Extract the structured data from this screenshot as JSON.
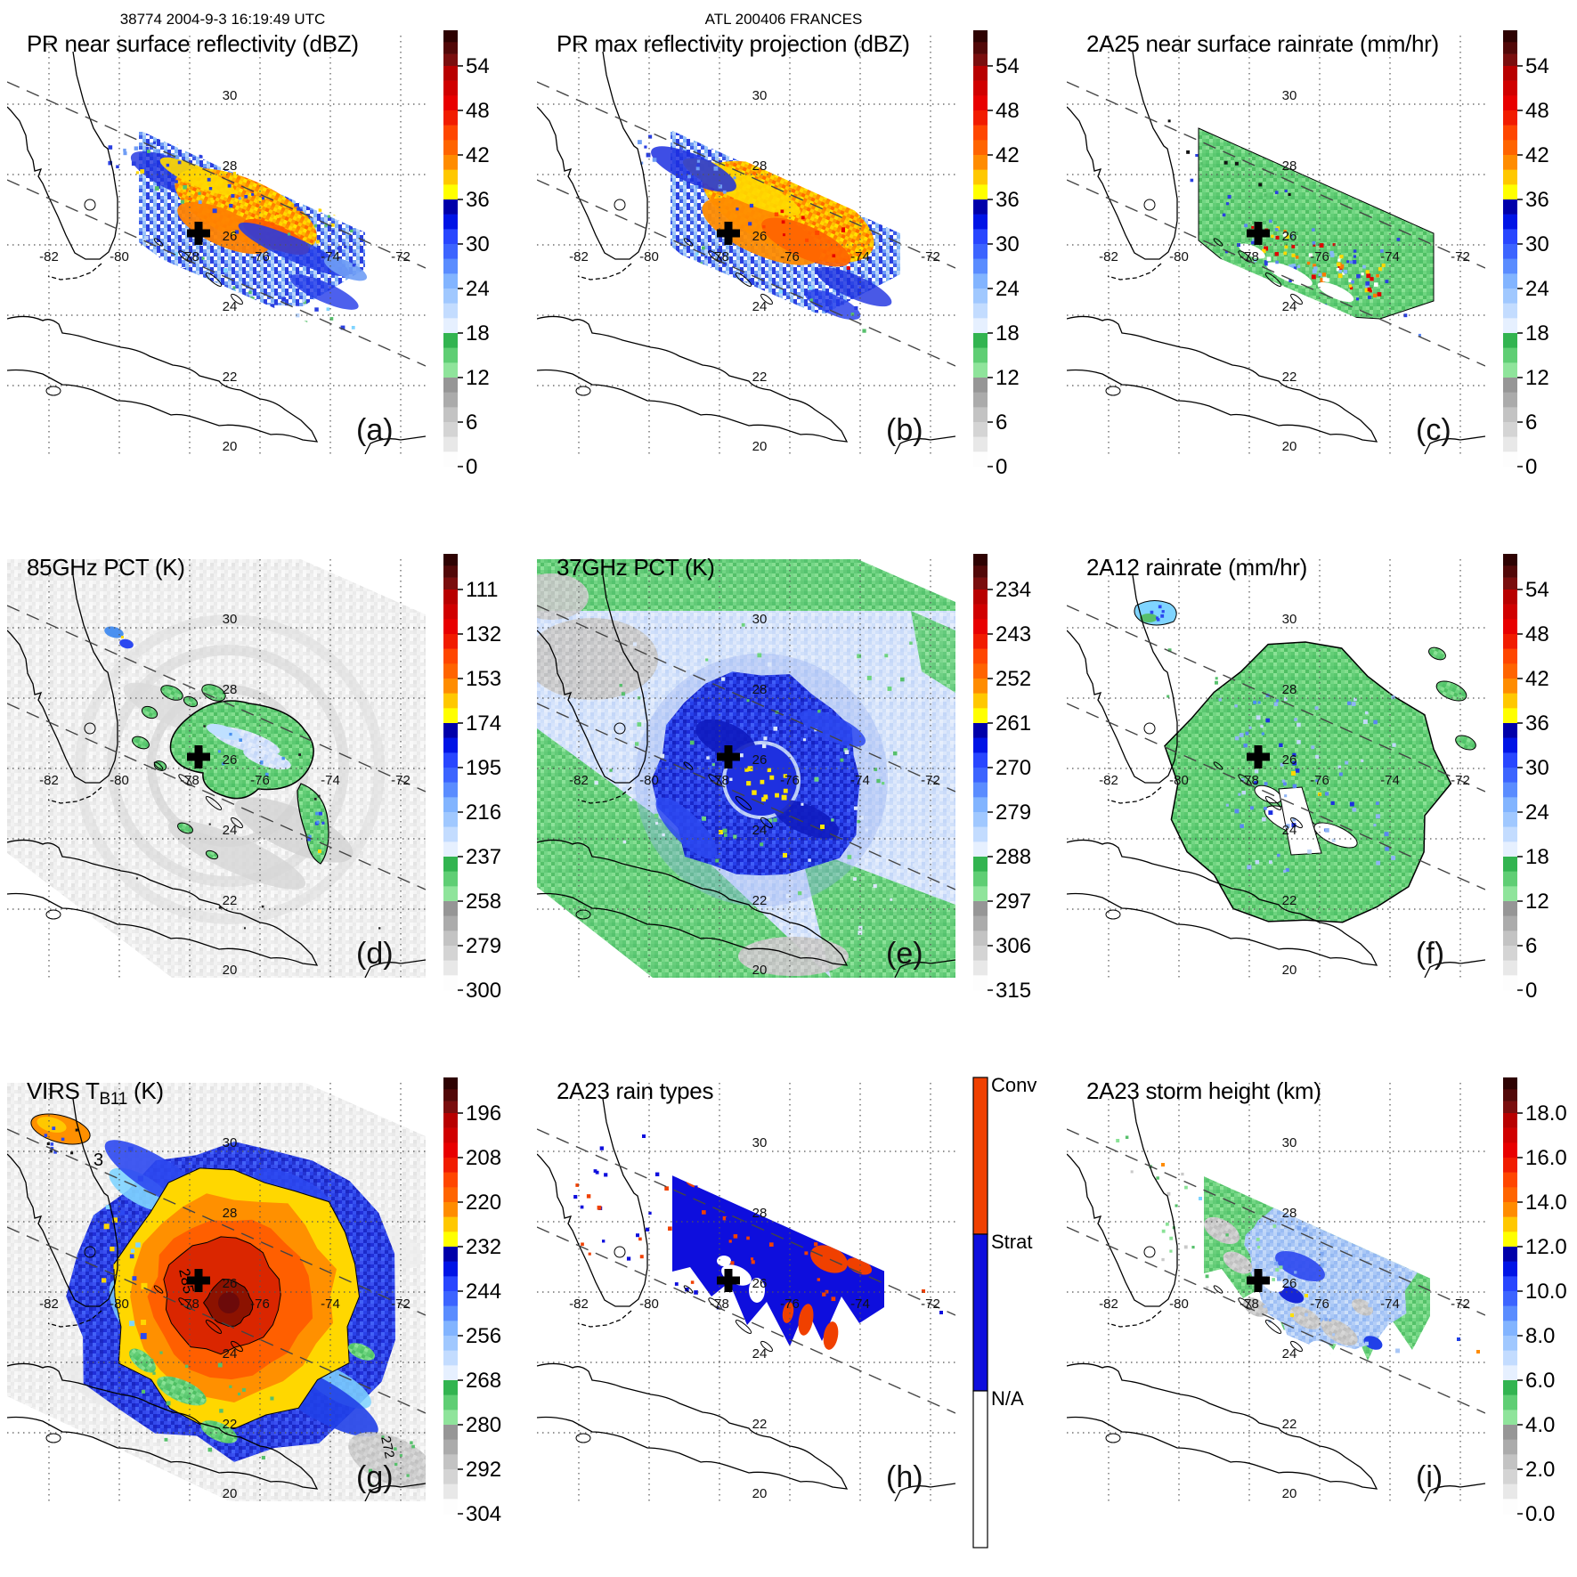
{
  "header": {
    "left": "38774 2004-9-3 16:19:49 UTC",
    "center": "ATL 200406 FRANCES"
  },
  "geo": {
    "lon_labels": [
      "-82",
      "-80",
      "-78",
      "-76",
      "-74",
      "-72"
    ],
    "lat_labels": [
      "30",
      "28",
      "26",
      "24",
      "22",
      "20"
    ]
  },
  "icons": {
    "storm-center-marker": "plus-cross"
  },
  "palette": {
    "cap": [
      "#2e0202",
      "#520808",
      "#7a0e0e"
    ],
    "rainbow": [
      [
        "#b80000",
        "#d00000",
        "#e80000"
      ],
      [
        "#f11c00",
        "#ff4600",
        "#ff6400"
      ],
      [
        "#ff8c00",
        "#ffc800",
        "#ffff00"
      ],
      [
        "#0000aa",
        "#0014e6",
        "#2846ff"
      ],
      [
        "#3c64ff",
        "#5a8cff",
        "#82b4ff"
      ],
      [
        "#a0c8ff",
        "#c3dcff",
        "#e6f0ff"
      ],
      [
        "#32b450",
        "#5fce74",
        "#8fe49b"
      ],
      [
        "#969696",
        "#ababab",
        "#c3c3c3"
      ],
      [
        "#d4d4d4",
        "#e8e8e8",
        "#fdfdfd"
      ]
    ],
    "rain_types": {
      "convective": "#f04000",
      "stratiform": "#0e0edd",
      "na": "#ffffff"
    },
    "land_outline": "#000000",
    "grid_line": "#555555",
    "swath_edge": "#444444"
  },
  "panels": [
    {
      "id": "a",
      "letter": "(a)",
      "title": "PR near surface reflectivity (dBZ)",
      "scene": "a",
      "colorbar": "rainbow",
      "colorbar_ticks": [
        "54",
        "48",
        "42",
        "36",
        "30",
        "24",
        "18",
        "12",
        "6",
        "0"
      ]
    },
    {
      "id": "b",
      "letter": "(b)",
      "title": "PR max reflectivity projection (dBZ)",
      "scene": "b",
      "colorbar": "rainbow",
      "colorbar_ticks": [
        "54",
        "48",
        "42",
        "36",
        "30",
        "24",
        "18",
        "12",
        "6",
        "0"
      ]
    },
    {
      "id": "c",
      "letter": "(c)",
      "title": "2A25 near surface rainrate (mm/hr)",
      "scene": "c",
      "colorbar": "rainbow",
      "colorbar_ticks": [
        "54",
        "48",
        "42",
        "36",
        "30",
        "24",
        "18",
        "12",
        "6",
        "0"
      ]
    },
    {
      "id": "d",
      "letter": "(d)",
      "title": "85GHz PCT (K)",
      "scene": "d",
      "colorbar": "rainbow",
      "colorbar_ticks": [
        "111",
        "132",
        "153",
        "174",
        "195",
        "216",
        "237",
        "258",
        "279",
        "300"
      ]
    },
    {
      "id": "e",
      "letter": "(e)",
      "title": "37GHz PCT (K)",
      "scene": "e",
      "colorbar": "rainbow",
      "colorbar_ticks": [
        "234",
        "243",
        "252",
        "261",
        "270",
        "279",
        "288",
        "297",
        "306",
        "315"
      ]
    },
    {
      "id": "f",
      "letter": "(f)",
      "title": "2A12 rainrate (mm/hr)",
      "scene": "f",
      "colorbar": "rainbow",
      "colorbar_ticks": [
        "54",
        "48",
        "42",
        "36",
        "30",
        "24",
        "18",
        "12",
        "6",
        "0"
      ]
    },
    {
      "id": "g",
      "letter": "(g)",
      "title_parts": {
        "pre": "VIRS T",
        "sub": "B11",
        "post": " (K)"
      },
      "scene": "g",
      "colorbar": "rainbow",
      "colorbar_ticks": [
        "196",
        "208",
        "220",
        "232",
        "244",
        "256",
        "268",
        "280",
        "292",
        "304"
      ],
      "contour_labels": [
        "3",
        "285",
        "272"
      ]
    },
    {
      "id": "h",
      "letter": "(h)",
      "title": "2A23 rain types",
      "scene": "h",
      "colorbar": "raintypes",
      "colorbar_labels": [
        "Conv",
        "Strat",
        "N/A"
      ]
    },
    {
      "id": "i",
      "letter": "(i)",
      "title": "2A23 storm height (km)",
      "scene": "i",
      "colorbar": "rainbow",
      "colorbar_ticks": [
        "18.0",
        "16.0",
        "14.0",
        "12.0",
        "10.0",
        "8.0",
        "6.0",
        "4.0",
        "2.0",
        "0.0"
      ]
    }
  ],
  "chart_data": {
    "meta": {
      "overpass_id": "38774",
      "datetime_utc": "2004-9-3 16:19:49 UTC",
      "storm": "ATL 200406 FRANCES",
      "grid_lon_deg": [
        -82,
        -80,
        -78,
        -76,
        -74,
        -72
      ],
      "grid_lat_deg": [
        30,
        28,
        26,
        24,
        22,
        20
      ],
      "storm_center_deg": [
        -77.7,
        25.9
      ]
    },
    "panels": [
      {
        "label": "(a)",
        "title": "PR near surface reflectivity (dBZ)",
        "type": "heatmap",
        "units": "dBZ",
        "scale_ticks": [
          54,
          48,
          42,
          36,
          30,
          24,
          18,
          12,
          6,
          0
        ],
        "description": "TRMM PR narrow diagonal swath; spiral rainbands 18-50 dBZ northeast of storm center, convective cores 42-50 dBZ"
      },
      {
        "label": "(b)",
        "title": "PR max reflectivity projection (dBZ)",
        "type": "heatmap",
        "units": "dBZ",
        "scale_ticks": [
          54,
          48,
          42,
          36,
          30,
          24,
          18,
          12,
          6,
          0
        ],
        "description": "column-maximum reflectivity; broad contiguous 36-48 dBZ core with blue 24-36 dBZ fringes"
      },
      {
        "label": "(c)",
        "title": "2A25 near surface rainrate (mm/hr)",
        "type": "heatmap",
        "units": "mm/hr",
        "scale_ticks": [
          54,
          48,
          42,
          36,
          30,
          24,
          18,
          12,
          6,
          0
        ],
        "description": "mostly 1-12 mm/hr (green) swath with embedded 30-54 mm/hr cells in a band near 26N"
      },
      {
        "label": "(d)",
        "title": "85GHz PCT (K)",
        "type": "heatmap",
        "units": "K",
        "scale_ticks": [
          111,
          132,
          153,
          174,
          195,
          216,
          237,
          258,
          279,
          300
        ],
        "description": "wide TMI swath, grayscale 258-300 K background; ice-scattering depression 195-258 K arc (green/pale blue) northeast of center"
      },
      {
        "label": "(e)",
        "title": "37GHz PCT (K)",
        "type": "heatmap",
        "units": "K",
        "scale_ticks": [
          234,
          243,
          252,
          261,
          270,
          279,
          288,
          297,
          306,
          315
        ],
        "description": "ocean background 288-306 K (green/gray), pale 279-288 K field, emission ring 261-279 K (blue) around eye with 255-264 K yellow cells at center"
      },
      {
        "label": "(f)",
        "title": "2A12 rainrate (mm/hr)",
        "type": "heatmap",
        "units": "mm/hr",
        "scale_ticks": [
          54,
          48,
          42,
          36,
          30,
          24,
          18,
          12,
          6,
          0
        ],
        "description": "near-circular rain shield mostly 1-12 mm/hr (green) with 12-30 mm/hr blue speckles and dry notches near the eye"
      },
      {
        "label": "(g)",
        "title": "VIRS TB11 (K)",
        "type": "heatmap",
        "units": "K",
        "scale_ticks": [
          196,
          208,
          220,
          232,
          244,
          256,
          268,
          280,
          292,
          304
        ],
        "contour_labels": [
          3,
          285,
          272
        ],
        "description": "cold central dense overcast 196-232 K (red/orange/yellow) with <208 K dark-red eye region, 232-256 K blue ring, warm clear air 280-304 K gray outside"
      },
      {
        "label": "(h)",
        "title": "2A23 rain types",
        "type": "categorical-map",
        "categories": [
          "Conv",
          "Strat",
          "N/A"
        ],
        "description": "stratiform rain (blue) dominates the PR swath with embedded convective patches (orange); white = no rain"
      },
      {
        "label": "(i)",
        "title": "2A23 storm height (km)",
        "type": "heatmap",
        "units": "km",
        "scale_ticks": [
          18.0,
          16.0,
          14.0,
          12.0,
          10.0,
          8.0,
          6.0,
          4.0,
          2.0,
          0.0
        ],
        "description": "storm heights mostly 4-8 km (gray/green) with 8-12 km (pale blue/blue) near and northeast of the center"
      }
    ]
  }
}
